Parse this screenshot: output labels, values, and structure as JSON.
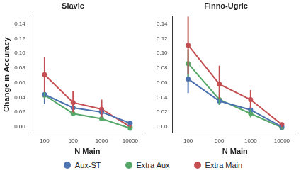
{
  "chart_data": [
    {
      "type": "line",
      "title": "Slavic",
      "x_label": "N Main",
      "y_label": "Change in Accuracy",
      "categories": [
        "100",
        "500",
        "1000",
        "10000"
      ],
      "ylim": [
        -0.008,
        0.15
      ],
      "yticks": [
        {
          "value": 0,
          "label": "0.00"
        },
        {
          "value": 0.02,
          "label": "0.02"
        },
        {
          "value": 0.04,
          "label": "0.04"
        },
        {
          "value": 0.06,
          "label": "0.06"
        },
        {
          "value": 0.08,
          "label": "0.08"
        },
        {
          "value": 0.1,
          "label": "0.10"
        },
        {
          "value": 0.12,
          "label": "0.12"
        },
        {
          "value": 0.14,
          "label": "0.14"
        }
      ],
      "grid": false,
      "legend": "bottom",
      "series": [
        {
          "name": "Aux-ST",
          "color": "#4c72b0",
          "marker": "circle",
          "values": [
            0.044,
            0.026,
            0.02,
            0.005
          ],
          "ci_low": [
            0.031,
            0.02,
            0.014,
            0.002
          ],
          "ci_high": [
            0.047,
            0.031,
            0.025,
            0.008
          ]
        },
        {
          "name": "Extra Aux",
          "color": "#55a868",
          "marker": "circle",
          "values": [
            0.043,
            0.018,
            0.011,
            -0.002
          ],
          "ci_low": [
            0.038,
            0.015,
            0.008,
            -0.004
          ],
          "ci_high": [
            0.048,
            0.022,
            0.014,
            0.0
          ]
        },
        {
          "name": "Extra Main",
          "color": "#c44e52",
          "marker": "circle",
          "values": [
            0.071,
            0.033,
            0.024,
            0.0
          ],
          "ci_low": [
            0.047,
            0.02,
            0.013,
            -0.002
          ],
          "ci_high": [
            0.095,
            0.049,
            0.037,
            0.003
          ]
        }
      ]
    },
    {
      "type": "line",
      "title": "Finno-Ugric",
      "x_label": "N Main",
      "categories": [
        "100",
        "500",
        "1000",
        "10000"
      ],
      "ylim": [
        -0.008,
        0.15
      ],
      "yticks": [
        {
          "value": 0,
          "label": "0.00"
        },
        {
          "value": 0.02,
          "label": "0.02"
        },
        {
          "value": 0.04,
          "label": "0.04"
        },
        {
          "value": 0.06,
          "label": "0.06"
        },
        {
          "value": 0.08,
          "label": "0.08"
        },
        {
          "value": 0.1,
          "label": "0.10"
        },
        {
          "value": 0.12,
          "label": "0.12"
        },
        {
          "value": 0.14,
          "label": "0.14"
        }
      ],
      "grid": false,
      "legend": "bottom",
      "series": [
        {
          "name": "Aux-ST",
          "color": "#4c72b0",
          "marker": "circle",
          "values": [
            0.065,
            0.035,
            0.023,
            0.0
          ],
          "ci_low": [
            0.046,
            0.03,
            0.018,
            -0.002
          ],
          "ci_high": [
            0.085,
            0.04,
            0.028,
            0.002
          ]
        },
        {
          "name": "Extra Aux",
          "color": "#55a868",
          "marker": "circle",
          "values": [
            0.086,
            0.037,
            0.018,
            -0.001
          ],
          "ci_low": [
            0.068,
            0.03,
            0.013,
            -0.003
          ],
          "ci_high": [
            0.104,
            0.045,
            0.024,
            0.001
          ]
        },
        {
          "name": "Extra Main",
          "color": "#c44e52",
          "marker": "circle",
          "values": [
            0.111,
            0.058,
            0.037,
            0.003
          ],
          "ci_low": [
            0.072,
            0.038,
            0.025,
            0.0
          ],
          "ci_high": [
            0.15,
            0.083,
            0.05,
            0.006
          ]
        }
      ]
    }
  ]
}
